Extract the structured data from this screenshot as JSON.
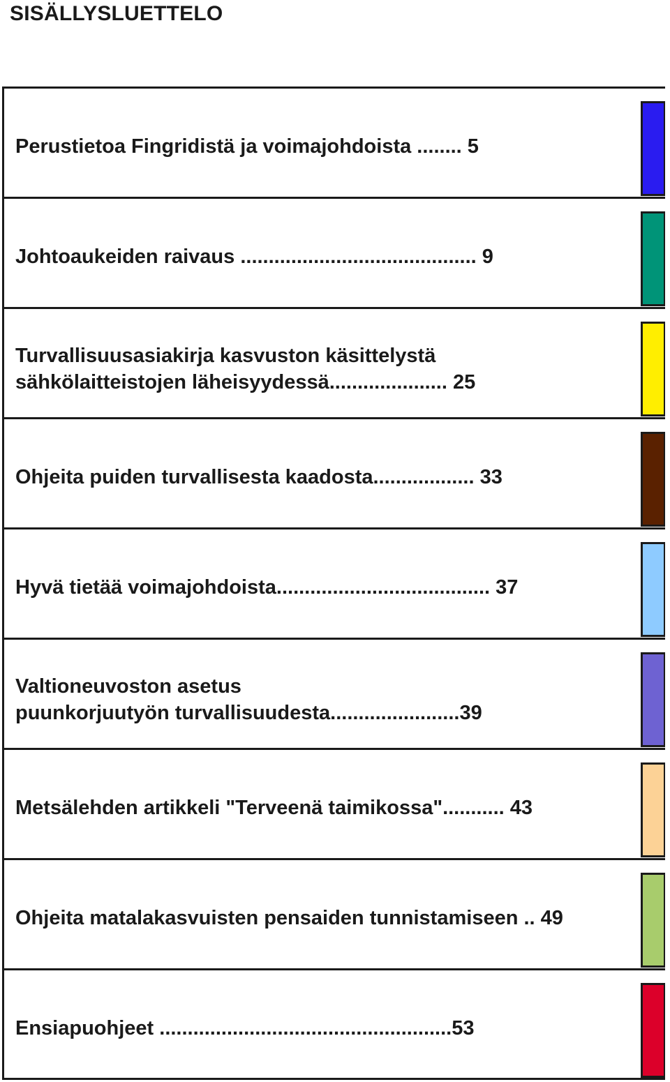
{
  "title": "SISÄLLYSLUETTELO",
  "entries": [
    {
      "lines": [
        "Perustietoa Fingridistä ja voimajohdoista ........ 5"
      ],
      "tab_color": "#2a1cf0"
    },
    {
      "lines": [
        "Johtoaukeiden raivaus .......................................... 9"
      ],
      "tab_color": "#009478"
    },
    {
      "lines": [
        "Turvallisuusasiakirja kasvuston käsittelystä",
        "sähkölaitteistojen läheisyydessä..................... 25"
      ],
      "tab_color": "#ffee00"
    },
    {
      "lines": [
        "Ohjeita puiden turvallisesta kaadosta.................. 33"
      ],
      "tab_color": "#5a2100"
    },
    {
      "lines": [
        "Hyvä tietää voimajohdoista...................................... 37"
      ],
      "tab_color": "#8ecbff"
    },
    {
      "lines": [
        "Valtioneuvoston asetus",
        "puunkorjuutyön turvallisuudesta.......................39"
      ],
      "tab_color": "#6e62d2"
    },
    {
      "lines": [
        "Metsälehden artikkeli  \"Terveenä taimikossa\"........... 43"
      ],
      "tab_color": "#fcd296"
    },
    {
      "lines": [
        "Ohjeita matalakasvuisten pensaiden tunnistamiseen .. 49"
      ],
      "tab_color": "#a8cc6c"
    },
    {
      "lines": [
        "Ensiapuohjeet ....................................................53"
      ],
      "tab_color": "#dc002a"
    }
  ]
}
